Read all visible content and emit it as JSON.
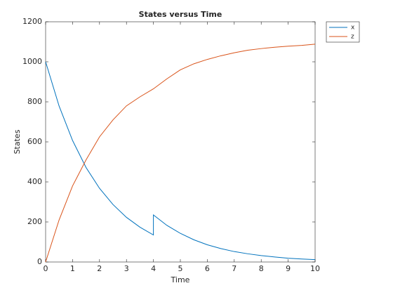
{
  "chart_data": {
    "type": "line",
    "title": "States versus Time",
    "xlabel": "Time",
    "ylabel": "States",
    "x": [
      0,
      0.5,
      1,
      1.5,
      2,
      2.5,
      3,
      3.5,
      4,
      4,
      4.5,
      5,
      5.5,
      6,
      6.5,
      7,
      7.5,
      8,
      8.5,
      9,
      9.5,
      10
    ],
    "series": [
      {
        "name": "x",
        "color": "#0072bd",
        "values": [
          1000,
          779,
          607,
          472,
          368,
          287,
          223,
          174,
          135,
          235,
          183,
          143,
          111,
          86,
          67,
          52,
          41,
          32,
          25,
          19,
          15,
          12
        ]
      },
      {
        "name": "z",
        "color": "#d95319",
        "values": [
          0,
          210,
          380,
          510,
          625,
          710,
          780,
          825,
          865,
          865,
          915,
          960,
          990,
          1012,
          1030,
          1045,
          1058,
          1066,
          1073,
          1078,
          1082,
          1088
        ]
      }
    ],
    "xlim": [
      0,
      10
    ],
    "xticks": [
      0,
      1,
      2,
      3,
      4,
      5,
      6,
      7,
      8,
      9,
      10
    ],
    "ylim": [
      0,
      1200
    ],
    "yticks": [
      0,
      200,
      400,
      600,
      800,
      1000,
      1200
    ],
    "legend": "northeastoutside"
  }
}
